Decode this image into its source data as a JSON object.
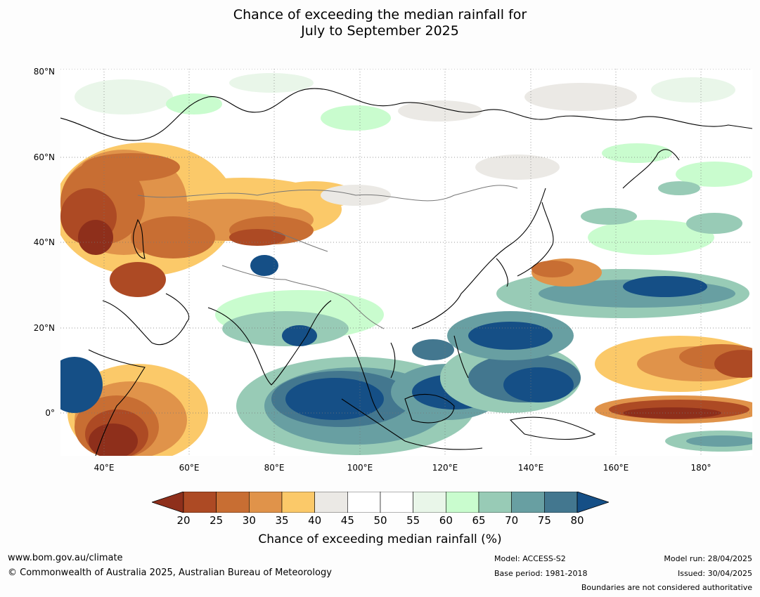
{
  "title": {
    "line1": "Chance of exceeding the median rainfall for",
    "line2": "July to September 2025"
  },
  "map": {
    "lat_labels": [
      "80°N",
      "60°N",
      "40°N",
      "20°N",
      "0°"
    ],
    "lon_labels": [
      "40°E",
      "60°E",
      "80°E",
      "100°E",
      "120°E",
      "140°E",
      "160°E",
      "180°"
    ]
  },
  "colorbar": {
    "ticks": [
      "20",
      "25",
      "30",
      "35",
      "40",
      "45",
      "50",
      "55",
      "60",
      "65",
      "70",
      "75",
      "80"
    ],
    "colors": [
      "#8e2f1b",
      "#ad4a24",
      "#c86e33",
      "#e0934a",
      "#fbc969",
      "#ebe9e5",
      "#ffffff",
      "#ffffff",
      "#e9f6e9",
      "#c9fcce",
      "#98cbb6",
      "#689fa2",
      "#43778f",
      "#154f86"
    ],
    "title": "Chance of exceeding median rainfall (%)"
  },
  "footer": {
    "website": "www.bom.gov.au/climate",
    "copyright": "© Commonwealth of Australia 2025, Australian Bureau of Meteorology",
    "model": "Model: ACCESS-S2",
    "base_period": "Base period: 1981-2018",
    "model_run": "Model run: 28/04/2025",
    "issued": "Issued: 30/04/2025",
    "disclaimer": "Boundaries are not considered authoritative"
  }
}
